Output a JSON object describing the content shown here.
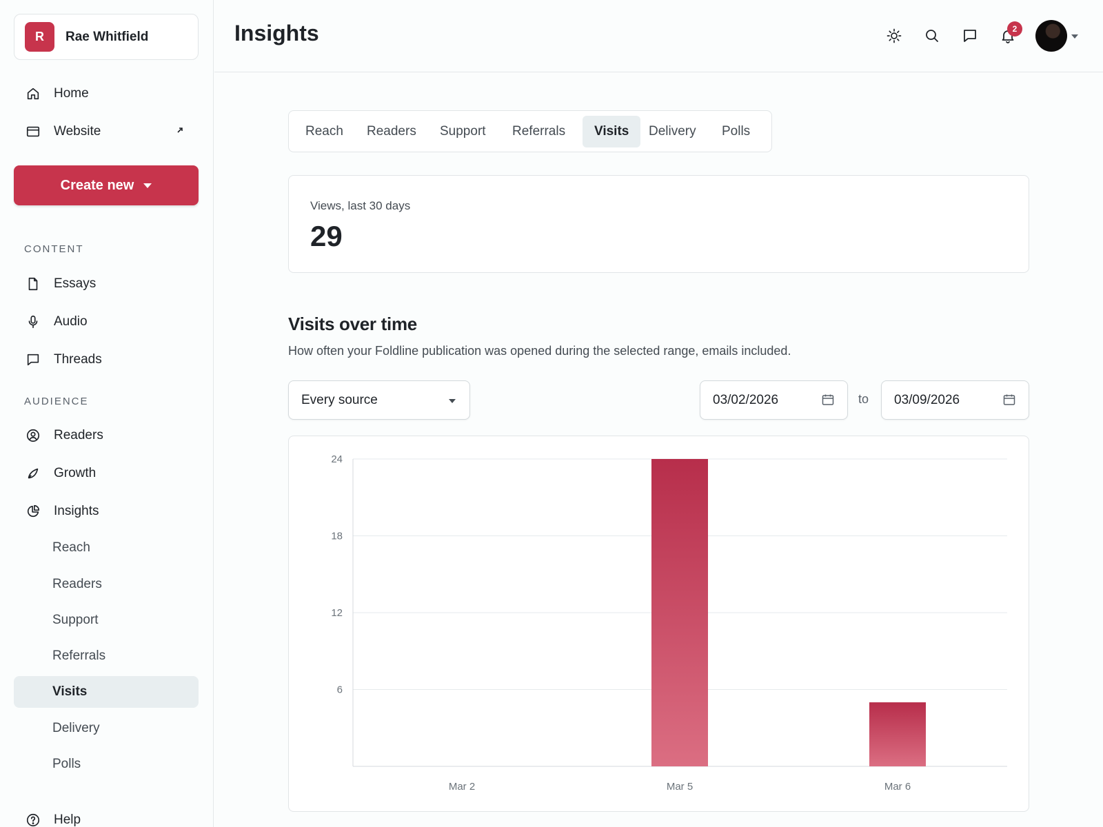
{
  "account": {
    "initial": "R",
    "name": "Rae Whitfield"
  },
  "nav": {
    "home": "Home",
    "website": "Website",
    "create_new": "Create new",
    "content_label": "CONTENT",
    "essays": "Essays",
    "audio": "Audio",
    "threads": "Threads",
    "audience_label": "AUDIENCE",
    "readers": "Readers",
    "growth": "Growth",
    "insights": "Insights",
    "insights_sub": [
      "Reach",
      "Readers",
      "Support",
      "Referrals",
      "Visits",
      "Delivery",
      "Polls"
    ],
    "active_sub": "Visits",
    "help": "Help"
  },
  "header": {
    "title": "Insights",
    "notification_count": "2"
  },
  "tabs": [
    "Reach",
    "Readers",
    "Support",
    "Referrals",
    "Visits",
    "Delivery",
    "Polls"
  ],
  "active_tab": "Visits",
  "stat": {
    "label": "Views, last 30 days",
    "value": "29"
  },
  "section": {
    "title": "Visits over time",
    "description": "How often your Foldline publication was opened during the selected range, emails included."
  },
  "filters": {
    "source": "Every source",
    "date_from": "03/02/2026",
    "to_label": "to",
    "date_to": "03/09/2026"
  },
  "colors": {
    "accent": "#c7344c",
    "bar_top": "#b72e4b",
    "bar_bottom": "#db6e82"
  },
  "chart_data": {
    "type": "bar",
    "categories": [
      "Mar 2",
      "Mar 5",
      "Mar 6"
    ],
    "values": [
      0,
      24,
      5
    ],
    "title": "",
    "xlabel": "",
    "ylabel": "",
    "ylim": [
      0,
      24
    ],
    "yticks": [
      "6",
      "12",
      "18",
      "24"
    ],
    "grid": true
  }
}
